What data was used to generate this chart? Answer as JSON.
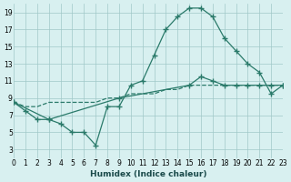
{
  "bg_color": "#d8f0f0",
  "grid_color": "#a0c8c8",
  "line_color": "#2a7a6a",
  "line_color2": "#2a7a6a",
  "line_color3": "#2a7a6a",
  "curve1_x": [
    0,
    1,
    2,
    3,
    4,
    5,
    6,
    7,
    8,
    9,
    10,
    11,
    12,
    13,
    14,
    15,
    16,
    17,
    18,
    19,
    20,
    21,
    22,
    23
  ],
  "curve1_y": [
    8.5,
    7.5,
    6.5,
    6.5,
    6.0,
    5.0,
    5.0,
    3.5,
    8.0,
    8.0,
    10.5,
    11.0,
    14.0,
    17.0,
    18.5,
    19.5,
    19.5,
    18.5,
    16.0,
    14.5,
    13.0,
    12.0,
    9.5,
    10.5
  ],
  "curve2_x": [
    0,
    1,
    2,
    3,
    4,
    5,
    6,
    7,
    8,
    9,
    10,
    11,
    12,
    13,
    14,
    15,
    16,
    17,
    18,
    19,
    20,
    21,
    22,
    23
  ],
  "curve2_y": [
    8.5,
    8.0,
    8.0,
    8.5,
    8.5,
    8.5,
    8.5,
    8.5,
    9.0,
    9.0,
    9.5,
    9.5,
    9.5,
    10.0,
    10.0,
    10.5,
    10.5,
    10.5,
    10.5,
    10.5,
    10.5,
    10.5,
    10.5,
    10.5
  ],
  "curve3_x": [
    0,
    3,
    9,
    15,
    16,
    17,
    18,
    19,
    20,
    21,
    22,
    23
  ],
  "curve3_y": [
    8.5,
    6.5,
    9.0,
    10.5,
    11.5,
    11.0,
    10.5,
    10.5,
    10.5,
    10.5,
    10.5,
    10.5
  ],
  "xlabel": "Humidex (Indice chaleur)",
  "xlim": [
    0,
    23
  ],
  "ylim": [
    2,
    20
  ],
  "yticks": [
    3,
    5,
    7,
    9,
    11,
    13,
    15,
    17,
    19
  ],
  "xticks": [
    0,
    1,
    2,
    3,
    4,
    5,
    6,
    7,
    8,
    9,
    10,
    11,
    12,
    13,
    14,
    15,
    16,
    17,
    18,
    19,
    20,
    21,
    22,
    23
  ],
  "xtick_labels": [
    "0",
    "1",
    "2",
    "3",
    "4",
    "5",
    "6",
    "7",
    "8",
    "9",
    "10",
    "11",
    "12",
    "13",
    "14",
    "15",
    "16",
    "17",
    "18",
    "19",
    "20",
    "21",
    "22",
    "23"
  ],
  "ytick_labels": [
    "3",
    "5",
    "7",
    "9",
    "11",
    "13",
    "15",
    "17",
    "19"
  ]
}
